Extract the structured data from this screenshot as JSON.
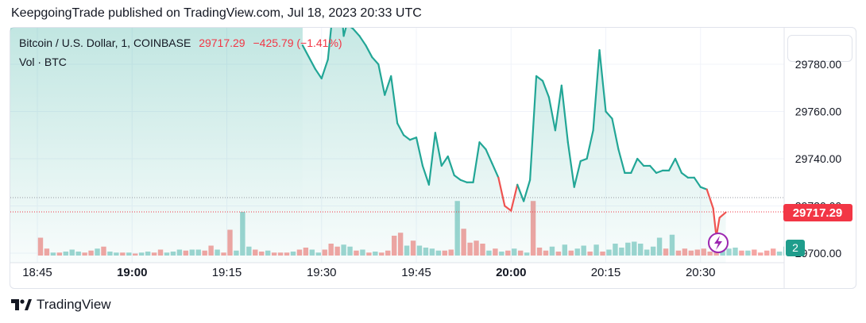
{
  "publish_line": "KeepgoingTrade published on TradingView.com, Jul 18, 2023 20:33 UTC",
  "legend": {
    "symbol": "Bitcoin / U.S. Dollar, 1, COINBASE",
    "last": "29717.29",
    "change": "−425.79 (−1.41%)",
    "volume_label": "Vol · BTC"
  },
  "footer": {
    "brand": "TradingView"
  },
  "colors": {
    "up": "#26a69a",
    "down": "#ef5350",
    "line": "#22a696",
    "price_tag": "#f23645"
  },
  "chart_data": {
    "type": "line",
    "x_ticks": [
      "18:45",
      "19:00",
      "19:15",
      "19:30",
      "19:45",
      "20:00",
      "20:15",
      "20:30"
    ],
    "x_tick_minutes": [
      0,
      15,
      30,
      45,
      60,
      75,
      90,
      105
    ],
    "y_ticks": [
      29780.0,
      29760.0,
      29740.0,
      29720.0,
      29700.0
    ],
    "y_tick_labels": [
      "29780.00",
      "29760.00",
      "29740.00",
      "29720.00",
      "29700.00"
    ],
    "ylim": [
      29698,
      29808
    ],
    "price_label": "29717.29",
    "volume_label": "2",
    "price_series": [
      [
        42,
        29788
      ],
      [
        44,
        29778
      ],
      [
        45,
        29774
      ],
      [
        46,
        29782
      ],
      [
        47,
        29808
      ],
      [
        48,
        29808
      ],
      [
        48.5,
        29792
      ],
      [
        49,
        29797
      ],
      [
        50,
        29795
      ],
      [
        51,
        29792
      ],
      [
        52,
        29788
      ],
      [
        53,
        29783
      ],
      [
        54,
        29780
      ],
      [
        55,
        29767
      ],
      [
        56,
        29775
      ],
      [
        57,
        29755
      ],
      [
        58,
        29750
      ],
      [
        59,
        29748
      ],
      [
        60,
        29749
      ],
      [
        61,
        29737
      ],
      [
        62,
        29729
      ],
      [
        63,
        29751
      ],
      [
        64,
        29737
      ],
      [
        65,
        29741
      ],
      [
        66,
        29733
      ],
      [
        67,
        29731
      ],
      [
        68,
        29730
      ],
      [
        69,
        29730
      ],
      [
        70,
        29747
      ],
      [
        71,
        29744
      ],
      [
        72,
        29738
      ],
      [
        73,
        29732
      ],
      [
        74,
        29720
      ],
      [
        75,
        29718
      ],
      [
        76,
        29729
      ],
      [
        77,
        29722
      ],
      [
        78,
        29731
      ],
      [
        79,
        29775
      ],
      [
        80,
        29773
      ],
      [
        81,
        29766
      ],
      [
        82,
        29752
      ],
      [
        83,
        29771
      ],
      [
        84,
        29747
      ],
      [
        85,
        29728
      ],
      [
        86,
        29739
      ],
      [
        87,
        29740
      ],
      [
        88,
        29752
      ],
      [
        89,
        29786
      ],
      [
        90,
        29760
      ],
      [
        91,
        29757
      ],
      [
        92,
        29744
      ],
      [
        93,
        29734
      ],
      [
        94,
        29734
      ],
      [
        95,
        29740
      ],
      [
        96,
        29737
      ],
      [
        97,
        29737
      ],
      [
        98,
        29734
      ],
      [
        99,
        29735
      ],
      [
        100,
        29735
      ],
      [
        101,
        29740
      ],
      [
        102,
        29734
      ],
      [
        103,
        29732
      ],
      [
        104,
        29732
      ],
      [
        105,
        29728
      ],
      [
        106,
        29727
      ],
      [
        107,
        29719
      ],
      [
        107.5,
        29707
      ],
      [
        108,
        29715
      ],
      [
        109,
        29717.29
      ]
    ],
    "volume_series": [
      [
        0.5,
        18,
        "d"
      ],
      [
        1.5,
        7,
        "d"
      ],
      [
        2.5,
        3,
        "u"
      ],
      [
        3.5,
        3,
        "d"
      ],
      [
        4.5,
        4,
        "u"
      ],
      [
        5.5,
        6,
        "u"
      ],
      [
        6.5,
        4,
        "u"
      ],
      [
        7.5,
        3,
        "d"
      ],
      [
        8.5,
        5,
        "d"
      ],
      [
        9.5,
        7,
        "u"
      ],
      [
        10.5,
        9,
        "d"
      ],
      [
        11.5,
        4,
        "u"
      ],
      [
        12.5,
        3,
        "u"
      ],
      [
        13.5,
        3,
        "d"
      ],
      [
        14.5,
        3,
        "u"
      ],
      [
        15.5,
        2,
        "d"
      ],
      [
        16.5,
        3,
        "u"
      ],
      [
        17.5,
        4,
        "u"
      ],
      [
        18.5,
        3,
        "d"
      ],
      [
        19.5,
        6,
        "d"
      ],
      [
        20.5,
        3,
        "u"
      ],
      [
        21.5,
        4,
        "u"
      ],
      [
        22.5,
        6,
        "u"
      ],
      [
        23.5,
        5,
        "d"
      ],
      [
        24.5,
        6,
        "u"
      ],
      [
        25.5,
        6,
        "u"
      ],
      [
        26.5,
        5,
        "d"
      ],
      [
        27.5,
        10,
        "d"
      ],
      [
        28.5,
        6,
        "u"
      ],
      [
        29.5,
        3,
        "d"
      ],
      [
        30.5,
        26,
        "d"
      ],
      [
        31.5,
        5,
        "u"
      ],
      [
        32.5,
        44,
        "u"
      ],
      [
        33.5,
        9,
        "u"
      ],
      [
        34.5,
        6,
        "d"
      ],
      [
        35.5,
        4,
        "d"
      ],
      [
        36.5,
        5,
        "u"
      ],
      [
        37.5,
        3,
        "d"
      ],
      [
        38.5,
        3,
        "d"
      ],
      [
        39.5,
        3,
        "d"
      ],
      [
        40.5,
        4,
        "u"
      ],
      [
        41.5,
        6,
        "d"
      ],
      [
        42.5,
        8,
        "d"
      ],
      [
        43.5,
        6,
        "u"
      ],
      [
        44.5,
        3,
        "u"
      ],
      [
        45.5,
        6,
        "d"
      ],
      [
        46.5,
        12,
        "d"
      ],
      [
        47.5,
        9,
        "d"
      ],
      [
        48.5,
        11,
        "u"
      ],
      [
        49.5,
        9,
        "u"
      ],
      [
        50.5,
        5,
        "d"
      ],
      [
        51.5,
        6,
        "u"
      ],
      [
        52.5,
        3,
        "d"
      ],
      [
        53.5,
        4,
        "u"
      ],
      [
        54.5,
        3,
        "d"
      ],
      [
        55.5,
        5,
        "d"
      ],
      [
        56.5,
        20,
        "d"
      ],
      [
        57.5,
        23,
        "d"
      ],
      [
        58.5,
        10,
        "u"
      ],
      [
        59.5,
        15,
        "d"
      ],
      [
        60.5,
        10,
        "u"
      ],
      [
        61.5,
        8,
        "u"
      ],
      [
        62.5,
        7,
        "u"
      ],
      [
        63.5,
        5,
        "u"
      ],
      [
        64.5,
        5,
        "d"
      ],
      [
        65.5,
        6,
        "d"
      ],
      [
        66.5,
        55,
        "u"
      ],
      [
        67.5,
        27,
        "d"
      ],
      [
        68.5,
        13,
        "d"
      ],
      [
        69.5,
        15,
        "d"
      ],
      [
        70.5,
        12,
        "d"
      ],
      [
        71.5,
        5,
        "u"
      ],
      [
        72.5,
        7,
        "d"
      ],
      [
        73.5,
        4,
        "u"
      ],
      [
        74.5,
        5,
        "d"
      ],
      [
        75.5,
        7,
        "u"
      ],
      [
        76.5,
        5,
        "d"
      ],
      [
        77.5,
        3,
        "u"
      ],
      [
        78.5,
        55,
        "d"
      ],
      [
        79.5,
        8,
        "d"
      ],
      [
        80.5,
        5,
        "d"
      ],
      [
        81.5,
        9,
        "u"
      ],
      [
        82.5,
        4,
        "d"
      ],
      [
        83.5,
        11,
        "u"
      ],
      [
        84.5,
        5,
        "d"
      ],
      [
        85.5,
        7,
        "u"
      ],
      [
        86.5,
        10,
        "u"
      ],
      [
        87.5,
        4,
        "d"
      ],
      [
        88.5,
        11,
        "u"
      ],
      [
        89.5,
        4,
        "d"
      ],
      [
        90.5,
        6,
        "u"
      ],
      [
        91.5,
        12,
        "u"
      ],
      [
        92.5,
        8,
        "u"
      ],
      [
        93.5,
        13,
        "u"
      ],
      [
        94.5,
        14,
        "u"
      ],
      [
        95.5,
        12,
        "u"
      ],
      [
        96.5,
        6,
        "u"
      ],
      [
        97.5,
        9,
        "u"
      ],
      [
        98.5,
        18,
        "u"
      ],
      [
        99.5,
        7,
        "d"
      ],
      [
        100.5,
        21,
        "u"
      ],
      [
        101.5,
        5,
        "d"
      ],
      [
        102.5,
        7,
        "d"
      ],
      [
        103.5,
        5,
        "d"
      ],
      [
        104.5,
        6,
        "d"
      ],
      [
        105.5,
        7,
        "d"
      ],
      [
        106.5,
        4,
        "d"
      ],
      [
        107.5,
        6,
        "d"
      ],
      [
        108.5,
        5,
        "u"
      ],
      [
        109.5,
        7,
        "u"
      ],
      [
        110.5,
        8,
        "u"
      ],
      [
        111.5,
        5,
        "d"
      ],
      [
        112.5,
        5,
        "u"
      ],
      [
        113.5,
        6,
        "d"
      ],
      [
        114.5,
        3,
        "d"
      ],
      [
        115.5,
        5,
        "d"
      ],
      [
        116.5,
        7,
        "d"
      ],
      [
        117.5,
        4,
        "u"
      ],
      [
        118.5,
        9,
        "u"
      ],
      [
        119.5,
        10,
        "u"
      ],
      [
        120.5,
        10,
        "u"
      ],
      [
        121.5,
        5,
        "u"
      ],
      [
        122.5,
        7,
        "d"
      ],
      [
        123.5,
        5,
        "u"
      ],
      [
        124.5,
        3,
        "d"
      ],
      [
        125.5,
        3,
        "u"
      ],
      [
        126.5,
        5,
        "d"
      ],
      [
        127.5,
        8,
        "d"
      ],
      [
        128.5,
        18,
        "d"
      ]
    ]
  }
}
